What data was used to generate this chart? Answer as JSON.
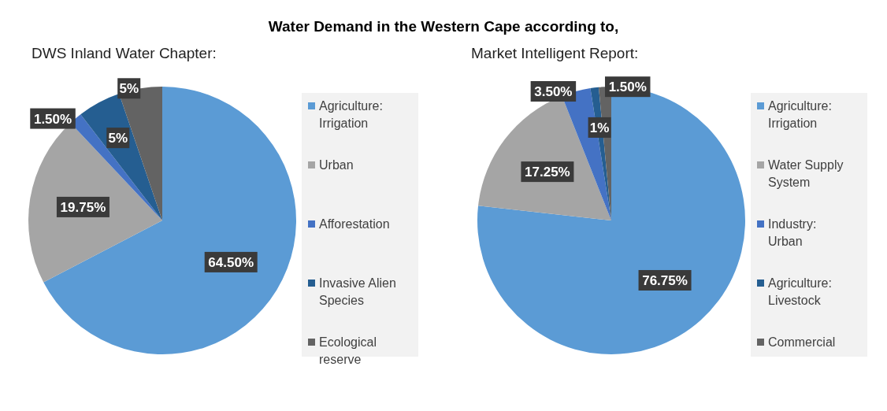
{
  "chart_data": [
    {
      "type": "pie",
      "title": "Water Demand in the Western Cape according to,",
      "subtitle": "DWS Inland Water Chapter:",
      "categories": [
        "Agriculture: Irrigation",
        "Urban",
        "Afforestation",
        "Invasive Alien Species",
        "Ecological reserve"
      ],
      "values": [
        64.5,
        19.75,
        1.5,
        5,
        5
      ],
      "value_labels": [
        "64.50%",
        "19.75%",
        "1.50%",
        "5%",
        "5%"
      ],
      "colors": [
        "#5b9bd5",
        "#a5a5a5",
        "#4472c4",
        "#255e91",
        "#636363"
      ],
      "legend": "right"
    },
    {
      "type": "pie",
      "subtitle": "Market Intelligent Report:",
      "categories": [
        "Agriculture: Irrigation",
        "Water Supply System",
        "Industry: Urban",
        "Agriculture: Livestock",
        "Commercial"
      ],
      "values": [
        76.75,
        17.25,
        3.5,
        1,
        1.5
      ],
      "value_labels": [
        "76.75%",
        "17.25%",
        "3.50%",
        "1%",
        "1.50%"
      ],
      "colors": [
        "#5b9bd5",
        "#a5a5a5",
        "#4472c4",
        "#255e91",
        "#636363"
      ],
      "legend": "right"
    }
  ]
}
